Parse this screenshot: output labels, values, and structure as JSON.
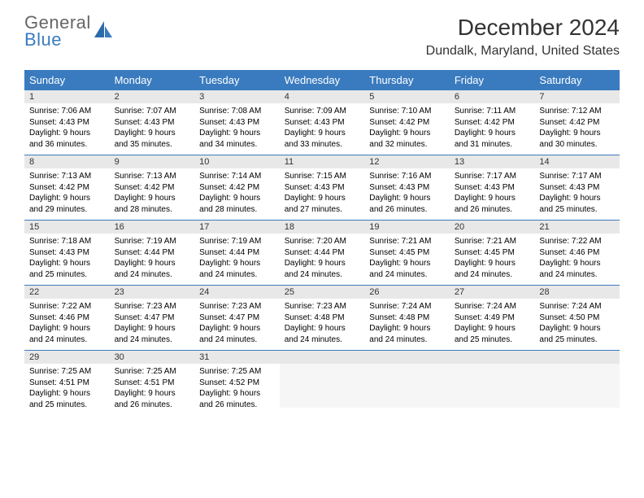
{
  "logo": {
    "general": "General",
    "blue": "Blue"
  },
  "title": "December 2024",
  "location": "Dundalk, Maryland, United States",
  "colors": {
    "header_bg": "#3a7bbf",
    "header_text": "#ffffff",
    "daynum_bg": "#e8e8e8",
    "row_divider": "#3a7bbf",
    "body_text": "#000000"
  },
  "day_names": [
    "Sunday",
    "Monday",
    "Tuesday",
    "Wednesday",
    "Thursday",
    "Friday",
    "Saturday"
  ],
  "days": [
    {
      "n": 1,
      "sr": "7:06 AM",
      "ss": "4:43 PM",
      "dl": "9 hours and 36 minutes."
    },
    {
      "n": 2,
      "sr": "7:07 AM",
      "ss": "4:43 PM",
      "dl": "9 hours and 35 minutes."
    },
    {
      "n": 3,
      "sr": "7:08 AM",
      "ss": "4:43 PM",
      "dl": "9 hours and 34 minutes."
    },
    {
      "n": 4,
      "sr": "7:09 AM",
      "ss": "4:43 PM",
      "dl": "9 hours and 33 minutes."
    },
    {
      "n": 5,
      "sr": "7:10 AM",
      "ss": "4:42 PM",
      "dl": "9 hours and 32 minutes."
    },
    {
      "n": 6,
      "sr": "7:11 AM",
      "ss": "4:42 PM",
      "dl": "9 hours and 31 minutes."
    },
    {
      "n": 7,
      "sr": "7:12 AM",
      "ss": "4:42 PM",
      "dl": "9 hours and 30 minutes."
    },
    {
      "n": 8,
      "sr": "7:13 AM",
      "ss": "4:42 PM",
      "dl": "9 hours and 29 minutes."
    },
    {
      "n": 9,
      "sr": "7:13 AM",
      "ss": "4:42 PM",
      "dl": "9 hours and 28 minutes."
    },
    {
      "n": 10,
      "sr": "7:14 AM",
      "ss": "4:42 PM",
      "dl": "9 hours and 28 minutes."
    },
    {
      "n": 11,
      "sr": "7:15 AM",
      "ss": "4:43 PM",
      "dl": "9 hours and 27 minutes."
    },
    {
      "n": 12,
      "sr": "7:16 AM",
      "ss": "4:43 PM",
      "dl": "9 hours and 26 minutes."
    },
    {
      "n": 13,
      "sr": "7:17 AM",
      "ss": "4:43 PM",
      "dl": "9 hours and 26 minutes."
    },
    {
      "n": 14,
      "sr": "7:17 AM",
      "ss": "4:43 PM",
      "dl": "9 hours and 25 minutes."
    },
    {
      "n": 15,
      "sr": "7:18 AM",
      "ss": "4:43 PM",
      "dl": "9 hours and 25 minutes."
    },
    {
      "n": 16,
      "sr": "7:19 AM",
      "ss": "4:44 PM",
      "dl": "9 hours and 24 minutes."
    },
    {
      "n": 17,
      "sr": "7:19 AM",
      "ss": "4:44 PM",
      "dl": "9 hours and 24 minutes."
    },
    {
      "n": 18,
      "sr": "7:20 AM",
      "ss": "4:44 PM",
      "dl": "9 hours and 24 minutes."
    },
    {
      "n": 19,
      "sr": "7:21 AM",
      "ss": "4:45 PM",
      "dl": "9 hours and 24 minutes."
    },
    {
      "n": 20,
      "sr": "7:21 AM",
      "ss": "4:45 PM",
      "dl": "9 hours and 24 minutes."
    },
    {
      "n": 21,
      "sr": "7:22 AM",
      "ss": "4:46 PM",
      "dl": "9 hours and 24 minutes."
    },
    {
      "n": 22,
      "sr": "7:22 AM",
      "ss": "4:46 PM",
      "dl": "9 hours and 24 minutes."
    },
    {
      "n": 23,
      "sr": "7:23 AM",
      "ss": "4:47 PM",
      "dl": "9 hours and 24 minutes."
    },
    {
      "n": 24,
      "sr": "7:23 AM",
      "ss": "4:47 PM",
      "dl": "9 hours and 24 minutes."
    },
    {
      "n": 25,
      "sr": "7:23 AM",
      "ss": "4:48 PM",
      "dl": "9 hours and 24 minutes."
    },
    {
      "n": 26,
      "sr": "7:24 AM",
      "ss": "4:48 PM",
      "dl": "9 hours and 24 minutes."
    },
    {
      "n": 27,
      "sr": "7:24 AM",
      "ss": "4:49 PM",
      "dl": "9 hours and 25 minutes."
    },
    {
      "n": 28,
      "sr": "7:24 AM",
      "ss": "4:50 PM",
      "dl": "9 hours and 25 minutes."
    },
    {
      "n": 29,
      "sr": "7:25 AM",
      "ss": "4:51 PM",
      "dl": "9 hours and 25 minutes."
    },
    {
      "n": 30,
      "sr": "7:25 AM",
      "ss": "4:51 PM",
      "dl": "9 hours and 26 minutes."
    },
    {
      "n": 31,
      "sr": "7:25 AM",
      "ss": "4:52 PM",
      "dl": "9 hours and 26 minutes."
    }
  ],
  "labels": {
    "sunrise": "Sunrise:",
    "sunset": "Sunset:",
    "daylight": "Daylight:"
  },
  "layout": {
    "start_weekday": 0,
    "total_days": 31,
    "weeks": 5
  }
}
